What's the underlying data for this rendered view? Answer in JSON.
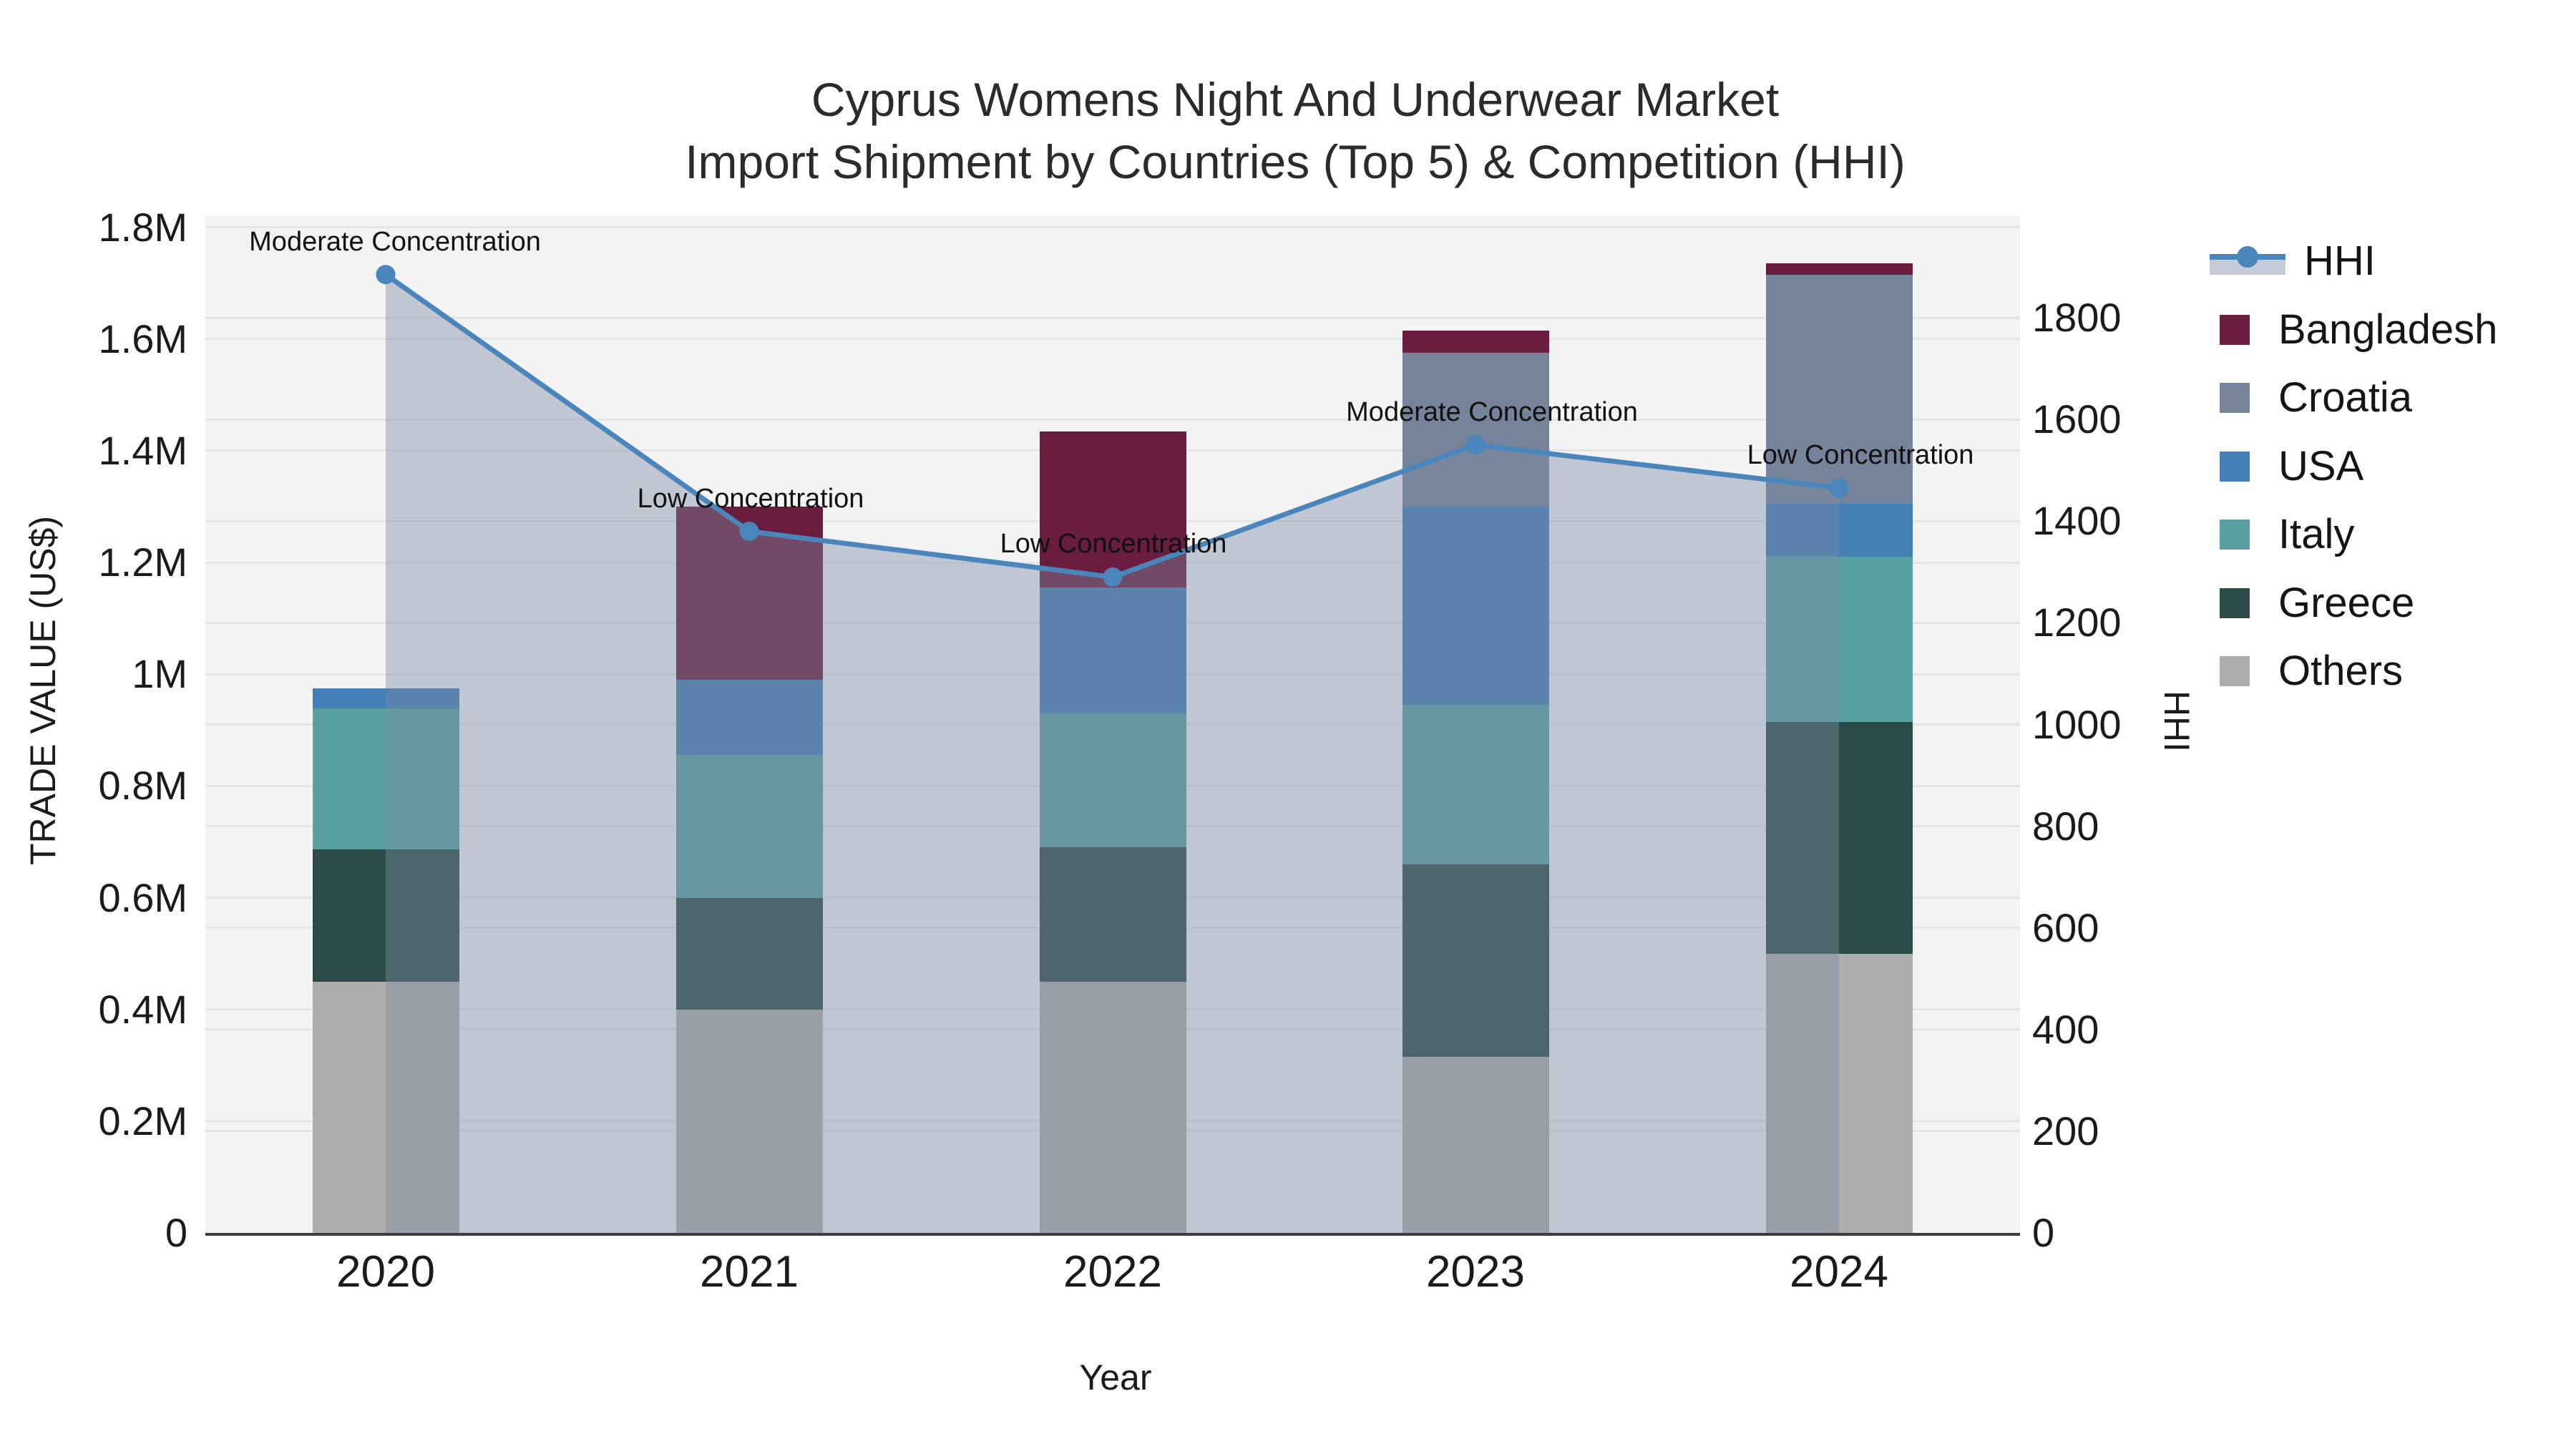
{
  "title": {
    "line1": "Cyprus Womens Night And Underwear Market",
    "line2": "Import Shipment by Countries (Top 5) & Competition (HHI)"
  },
  "axes": {
    "left": {
      "title": "TRADE VALUE (US$)",
      "ticks": [
        {
          "label": "0",
          "value": 0
        },
        {
          "label": "0.2M",
          "value": 200000
        },
        {
          "label": "0.4M",
          "value": 400000
        },
        {
          "label": "0.6M",
          "value": 600000
        },
        {
          "label": "0.8M",
          "value": 800000
        },
        {
          "label": "1M",
          "value": 1000000
        },
        {
          "label": "1.2M",
          "value": 1200000
        },
        {
          "label": "1.4M",
          "value": 1400000
        },
        {
          "label": "1.6M",
          "value": 1600000
        },
        {
          "label": "1.8M",
          "value": 1800000
        }
      ]
    },
    "right": {
      "title": "HHI",
      "ticks": [
        {
          "label": "0",
          "value": 0
        },
        {
          "label": "200",
          "value": 200
        },
        {
          "label": "400",
          "value": 400
        },
        {
          "label": "600",
          "value": 600
        },
        {
          "label": "800",
          "value": 800
        },
        {
          "label": "1000",
          "value": 1000
        },
        {
          "label": "1200",
          "value": 1200
        },
        {
          "label": "1400",
          "value": 1400
        },
        {
          "label": "1600",
          "value": 1600
        },
        {
          "label": "1800",
          "value": 1800
        }
      ]
    },
    "x": {
      "title": "Year"
    }
  },
  "legend": {
    "items": [
      {
        "label": "HHI",
        "type": "line",
        "color": "#4a86bb"
      },
      {
        "label": "Bangladesh",
        "type": "swatch",
        "color": "#6b1d3f"
      },
      {
        "label": "Croatia",
        "type": "swatch",
        "color": "#76849b"
      },
      {
        "label": "USA",
        "type": "swatch",
        "color": "#447fb7"
      },
      {
        "label": "Italy",
        "type": "swatch",
        "color": "#58a0a3"
      },
      {
        "label": "Greece",
        "type": "swatch",
        "color": "#2b4a48"
      },
      {
        "label": "Others",
        "type": "swatch",
        "color": "#aeaeae"
      }
    ]
  },
  "chart_data": {
    "type": "bar",
    "subtype": "stacked-bars-with-line",
    "title": "Cyprus Womens Night And Underwear Market — Import Shipment by Countries (Top 5) & Competition (HHI)",
    "xlabel": "Year",
    "ylabel": "TRADE VALUE (US$)",
    "y2label": "HHI",
    "categories": [
      "2020",
      "2021",
      "2022",
      "2023",
      "2024"
    ],
    "ylim": [
      0,
      1820000
    ],
    "y2lim": [
      0,
      2000
    ],
    "grid": true,
    "legend_position": "right",
    "stack_order_bottom_to_top": [
      "Others",
      "Greece",
      "Italy",
      "USA",
      "Croatia",
      "Bangladesh"
    ],
    "series": [
      {
        "name": "Others",
        "color": "#aeaeae",
        "values": [
          450000,
          400000,
          450000,
          315000,
          500000
        ]
      },
      {
        "name": "Greece",
        "color": "#2b4a48",
        "values": [
          237000,
          200000,
          240000,
          345000,
          415000
        ]
      },
      {
        "name": "Italy",
        "color": "#58a0a3",
        "values": [
          252000,
          255000,
          240000,
          285000,
          295000
        ]
      },
      {
        "name": "USA",
        "color": "#447fb7",
        "values": [
          36000,
          135000,
          225000,
          355000,
          95000
        ]
      },
      {
        "name": "Croatia",
        "color": "#76849b",
        "values": [
          0,
          0,
          0,
          275000,
          410000
        ]
      },
      {
        "name": "Bangladesh",
        "color": "#6b1d3f",
        "values": [
          0,
          310000,
          280000,
          40000,
          20000
        ]
      }
    ],
    "line_series": {
      "name": "HHI",
      "axis": "right",
      "color": "#4a86bb",
      "values": [
        1885,
        1380,
        1290,
        1550,
        1465
      ]
    },
    "annotations": [
      {
        "year": "2020",
        "text": "Moderate Concentration"
      },
      {
        "year": "2021",
        "text": "Low Concentration"
      },
      {
        "year": "2022",
        "text": "Low Concentration"
      },
      {
        "year": "2023",
        "text": "Moderate Concentration"
      },
      {
        "year": "2024",
        "text": "Low Concentration"
      }
    ]
  },
  "colors": {
    "page_bg": "#ffffff",
    "plot_bg": "#f3f3f4",
    "gridline": "#e4e4e7",
    "axis_line": "#3d3d3d",
    "hhi_line": "#4a86bb",
    "hhi_fill": "rgba(124,138,161,0.42)",
    "legend_band": "#c5cbd9",
    "text": "#1b1b1b"
  }
}
